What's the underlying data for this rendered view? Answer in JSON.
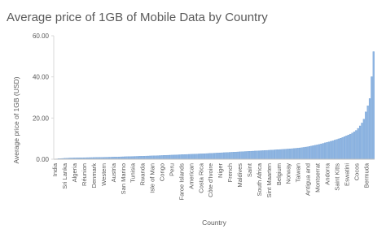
{
  "chart_data": {
    "type": "bar",
    "title": "Average price of 1GB of Mobile Data by Country",
    "x_label": "Country",
    "y_label": "Average price of 1GB (USD)",
    "color": "#8db4e2",
    "ylim": [
      0,
      60
    ],
    "yticks": [
      {
        "value": 0,
        "label": "0.00"
      },
      {
        "value": 20,
        "label": "20.00"
      },
      {
        "value": 40,
        "label": "40.00"
      },
      {
        "value": 60,
        "label": "60.00"
      }
    ],
    "categories": [
      "India",
      null,
      null,
      null,
      null,
      "Sri Lanka",
      null,
      null,
      null,
      null,
      "Algeria",
      null,
      null,
      null,
      null,
      "Réunion",
      null,
      null,
      null,
      null,
      "Denmark",
      null,
      null,
      null,
      null,
      "Western",
      null,
      null,
      null,
      null,
      "Austria",
      null,
      null,
      null,
      null,
      "San Marino",
      null,
      null,
      null,
      null,
      "Tunisia",
      null,
      null,
      null,
      null,
      "Rwanda",
      null,
      null,
      null,
      null,
      "Isle of Man",
      null,
      null,
      null,
      null,
      "Congo",
      null,
      null,
      null,
      null,
      "Peru",
      null,
      null,
      null,
      null,
      "Faroe Islands",
      null,
      null,
      null,
      null,
      "American",
      null,
      null,
      null,
      null,
      "Costa Rica",
      null,
      null,
      null,
      null,
      "Côte d'Ivoire",
      null,
      null,
      null,
      null,
      "Niger",
      null,
      null,
      null,
      null,
      "French",
      null,
      null,
      null,
      null,
      "Maldives",
      null,
      null,
      null,
      null,
      "Saint",
      null,
      null,
      null,
      null,
      "South Africa",
      null,
      null,
      null,
      null,
      "Sint Maarten",
      null,
      null,
      null,
      null,
      "Belgium",
      null,
      null,
      null,
      null,
      "Norway",
      null,
      null,
      null,
      null,
      "Taiwan",
      null,
      null,
      null,
      null,
      "Antigua and",
      null,
      null,
      null,
      null,
      "Montserrat",
      null,
      null,
      null,
      null,
      "Andorra",
      null,
      null,
      null,
      null,
      "Saint Kitts",
      null,
      null,
      null,
      null,
      "Eswatini",
      null,
      null,
      null,
      null,
      "Cocos",
      null,
      null,
      null,
      null,
      "Bermuda",
      null,
      null,
      null,
      null
    ],
    "values": [
      0.09,
      0.17,
      0.26,
      0.32,
      0.38,
      0.45,
      0.5,
      0.55,
      0.6,
      0.62,
      0.64,
      0.66,
      0.68,
      0.7,
      0.72,
      0.74,
      0.76,
      0.78,
      0.8,
      0.82,
      0.84,
      0.86,
      0.88,
      0.9,
      0.92,
      0.94,
      0.96,
      0.98,
      1.0,
      1.02,
      1.05,
      1.08,
      1.1,
      1.13,
      1.16,
      1.19,
      1.22,
      1.25,
      1.28,
      1.31,
      1.34,
      1.37,
      1.4,
      1.43,
      1.46,
      1.49,
      1.52,
      1.55,
      1.58,
      1.61,
      1.64,
      1.67,
      1.7,
      1.74,
      1.78,
      1.82,
      1.86,
      1.9,
      1.94,
      1.98,
      2.02,
      2.06,
      2.1,
      2.14,
      2.18,
      2.22,
      2.26,
      2.3,
      2.34,
      2.38,
      2.42,
      2.46,
      2.5,
      2.54,
      2.58,
      2.62,
      2.66,
      2.7,
      2.75,
      2.8,
      2.85,
      2.9,
      2.95,
      3.0,
      3.05,
      3.1,
      3.15,
      3.2,
      3.25,
      3.3,
      3.35,
      3.4,
      3.45,
      3.5,
      3.55,
      3.6,
      3.65,
      3.7,
      3.75,
      3.8,
      3.85,
      3.9,
      3.95,
      4.0,
      4.05,
      4.1,
      4.15,
      4.2,
      4.25,
      4.3,
      4.36,
      4.42,
      4.48,
      4.54,
      4.6,
      4.66,
      4.72,
      4.78,
      4.85,
      4.92,
      4.99,
      5.06,
      5.13,
      5.2,
      5.3,
      5.4,
      5.5,
      5.6,
      5.75,
      5.9,
      6.05,
      6.2,
      6.4,
      6.6,
      6.8,
      7.0,
      7.2,
      7.45,
      7.7,
      7.95,
      8.2,
      8.45,
      8.7,
      9.0,
      9.3,
      9.6,
      9.9,
      10.2,
      10.6,
      11.0,
      11.4,
      11.8,
      12.2,
      12.7,
      13.3,
      14.0,
      15.0,
      16.2,
      17.6,
      19.5,
      23.0,
      26.0,
      29.5,
      40.1,
      52.3
    ]
  }
}
